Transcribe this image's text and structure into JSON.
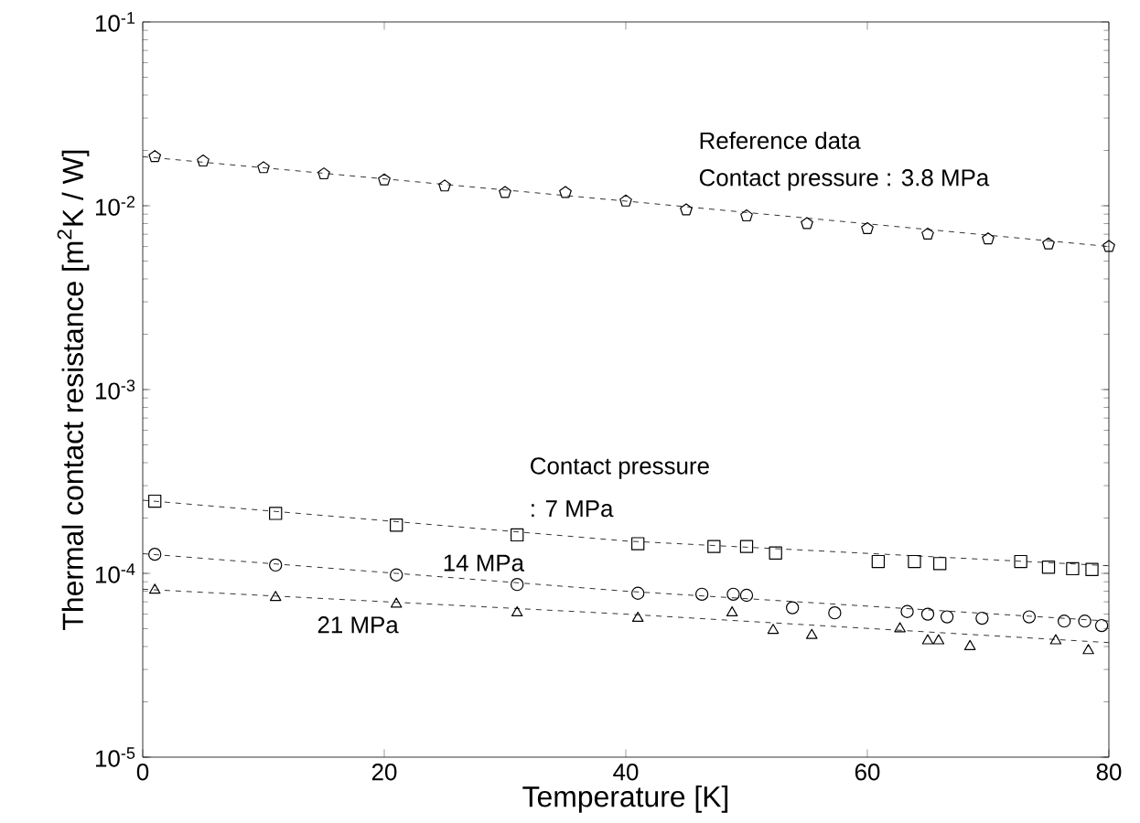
{
  "chart_data": {
    "type": "scatter",
    "xlabel": "Temperature [K]",
    "ylabel": "Thermal contact resistance [m$^{2}$K / W]",
    "log": "y",
    "grid": false,
    "xlim": [
      0,
      80
    ],
    "xticks": [
      0,
      20,
      40,
      60,
      80
    ],
    "ylim": [
      1e-05,
      0.1
    ],
    "yticks": [
      {
        "value": 1e-05,
        "label": "10$^{-5}$"
      },
      {
        "value": 0.0001,
        "label": "10$^{-4}$"
      },
      {
        "value": 0.001,
        "label": "10$^{-3}$"
      },
      {
        "value": 0.01,
        "label": "10$^{-2}$"
      },
      {
        "value": 0.1,
        "label": "10$^{-1}$"
      }
    ],
    "series": [
      {
        "type": "scatter",
        "color": "#000000",
        "x": [
          1,
          5,
          10,
          15,
          20,
          25,
          30,
          35,
          40,
          45,
          50,
          55,
          60,
          65,
          70,
          75,
          80
        ],
        "values": [
          0.0185,
          0.0175,
          0.0161,
          0.0149,
          0.0138,
          0.0128,
          0.0118,
          0.0118,
          0.0106,
          0.0095,
          0.0088,
          0.008,
          0.0075,
          0.007,
          0.0066,
          0.0062,
          0.006
        ]
      },
      {
        "type": "scatter",
        "marker": "square",
        "color": "#000000",
        "x": [
          1,
          11,
          21,
          31,
          41,
          47.3,
          50,
          52.4,
          60.9,
          63.9,
          66,
          72.7,
          75,
          77,
          78.6
        ],
        "values": [
          0.000247,
          0.000212,
          0.000183,
          0.000162,
          0.000145,
          0.00014,
          0.00014,
          0.000129,
          0.000116,
          0.000116,
          0.000113,
          0.000116,
          0.000108,
          0.000106,
          0.000105
        ]
      },
      {
        "type": "scatter",
        "marker": "circle",
        "color": "#000000",
        "x": [
          1,
          11,
          21,
          31,
          41,
          46.3,
          48.9,
          50,
          53.8,
          57.3,
          63.3,
          65,
          66.6,
          69.5,
          73.4,
          76.3,
          78,
          79.4
        ],
        "values": [
          0.000127,
          0.000111,
          9.8e-05,
          8.7e-05,
          7.8e-05,
          7.7e-05,
          7.7e-05,
          7.6e-05,
          6.5e-05,
          6.1e-05,
          6.2e-05,
          6e-05,
          5.8e-05,
          5.7e-05,
          5.8e-05,
          5.5e-05,
          5.5e-05,
          5.2e-05
        ]
      },
      {
        "type": "scatter",
        "marker": "triangle",
        "color": "#000000",
        "x": [
          1,
          11,
          21,
          31,
          41,
          48.8,
          52.2,
          55.4,
          62.7,
          65,
          65.9,
          68.5,
          75.6,
          78.3
        ],
        "values": [
          8.1e-05,
          7.4e-05,
          6.8e-05,
          6.1e-05,
          5.7e-05,
          6.1e-05,
          4.9e-05,
          4.6e-05,
          5e-05,
          4.3e-05,
          4.3e-05,
          4e-05,
          4.3e-05,
          3.8e-05
        ]
      },
      {
        "type": "line",
        "line_style": "dashed",
        "marker": "none",
        "color": "#000000",
        "x": [
          0,
          40,
          80
        ],
        "values": [
          0.0185,
          0.0106,
          0.006
        ]
      },
      {
        "type": "line",
        "line_style": "dashed",
        "marker": "none",
        "color": "#000000",
        "x": [
          0,
          40,
          80
        ],
        "values": [
          0.00025,
          0.00015,
          0.00011
        ]
      },
      {
        "type": "line",
        "line_style": "dashed",
        "marker": "none",
        "color": "#000000",
        "x": [
          0,
          40,
          80
        ],
        "values": [
          0.000128,
          8e-05,
          5.5e-05
        ]
      },
      {
        "type": "line",
        "line_style": "dashed",
        "marker": "none",
        "color": "#000000",
        "x": [
          0,
          40,
          80
        ],
        "values": [
          8.2e-05,
          6e-05,
          4.2e-05
        ]
      }
    ],
    "annotations": [
      "Reference data",
      "Contact pressure : 3.8 MPa",
      "Contact pressure",
      ": 7 MPa",
      "14 MPa",
      "21 MPa"
    ]
  }
}
